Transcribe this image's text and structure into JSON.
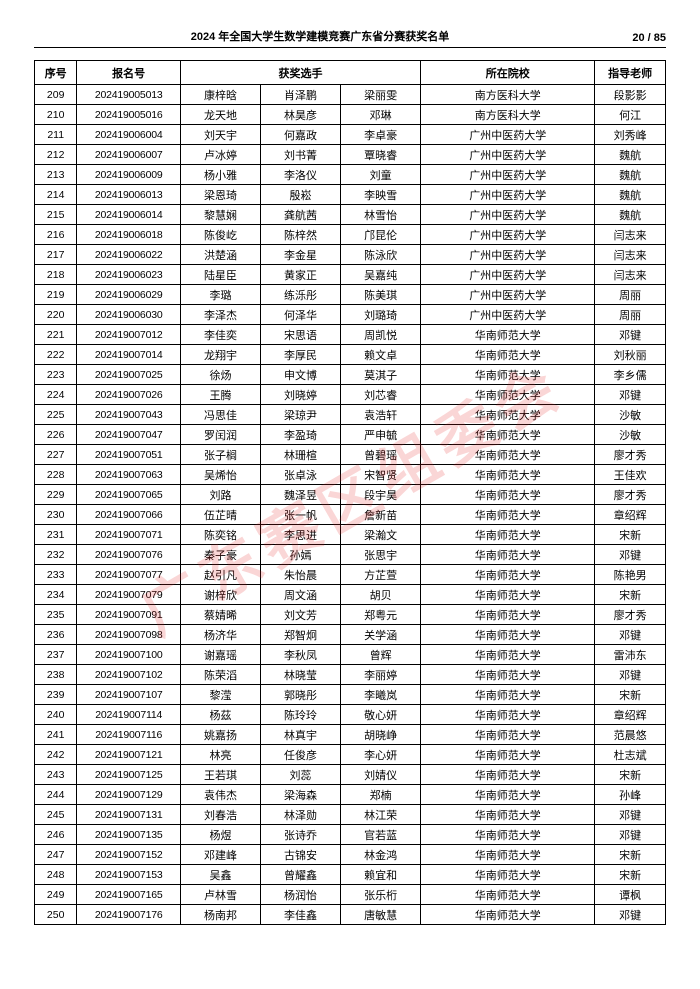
{
  "header": {
    "title": "2024 年全国大学生数学建模竞赛广东省分赛获奖名单",
    "page_label": "20 / 85"
  },
  "watermark": "广东赛区组委会",
  "columns": {
    "idx": "序号",
    "reg": "报名号",
    "winners": "获奖选手",
    "school": "所在院校",
    "teacher": "指导老师"
  },
  "rows": [
    {
      "idx": "209",
      "reg": "202419005013",
      "s1": "康梓晗",
      "s2": "肖泽鹏",
      "s3": "梁丽雯",
      "school": "南方医科大学",
      "teacher": "段影影"
    },
    {
      "idx": "210",
      "reg": "202419005016",
      "s1": "龙天地",
      "s2": "林昊彦",
      "s3": "邓琳",
      "school": "南方医科大学",
      "teacher": "何江"
    },
    {
      "idx": "211",
      "reg": "202419006004",
      "s1": "刘天宇",
      "s2": "何嘉政",
      "s3": "李卓豪",
      "school": "广州中医药大学",
      "teacher": "刘秀峰"
    },
    {
      "idx": "212",
      "reg": "202419006007",
      "s1": "卢冰婷",
      "s2": "刘书菁",
      "s3": "覃晓睿",
      "school": "广州中医药大学",
      "teacher": "魏航"
    },
    {
      "idx": "213",
      "reg": "202419006009",
      "s1": "杨小雅",
      "s2": "李洛仪",
      "s3": "刘童",
      "school": "广州中医药大学",
      "teacher": "魏航"
    },
    {
      "idx": "214",
      "reg": "202419006013",
      "s1": "梁恩琦",
      "s2": "殷崧",
      "s3": "李映雪",
      "school": "广州中医药大学",
      "teacher": "魏航"
    },
    {
      "idx": "215",
      "reg": "202419006014",
      "s1": "黎慧娴",
      "s2": "龚航茜",
      "s3": "林雪怡",
      "school": "广州中医药大学",
      "teacher": "魏航"
    },
    {
      "idx": "216",
      "reg": "202419006018",
      "s1": "陈俊屹",
      "s2": "陈梓然",
      "s3": "邝昆伦",
      "school": "广州中医药大学",
      "teacher": "闫志来"
    },
    {
      "idx": "217",
      "reg": "202419006022",
      "s1": "洪楚涵",
      "s2": "李金星",
      "s3": "陈泳欣",
      "school": "广州中医药大学",
      "teacher": "闫志来"
    },
    {
      "idx": "218",
      "reg": "202419006023",
      "s1": "陆星臣",
      "s2": "黄家正",
      "s3": "吴嘉纯",
      "school": "广州中医药大学",
      "teacher": "闫志来"
    },
    {
      "idx": "219",
      "reg": "202419006029",
      "s1": "李璐",
      "s2": "练泺彤",
      "s3": "陈美琪",
      "school": "广州中医药大学",
      "teacher": "周丽"
    },
    {
      "idx": "220",
      "reg": "202419006030",
      "s1": "李泽杰",
      "s2": "何泽华",
      "s3": "刘璐琦",
      "school": "广州中医药大学",
      "teacher": "周丽"
    },
    {
      "idx": "221",
      "reg": "202419007012",
      "s1": "李佳奕",
      "s2": "宋思语",
      "s3": "周凯悦",
      "school": "华南师范大学",
      "teacher": "邓键"
    },
    {
      "idx": "222",
      "reg": "202419007014",
      "s1": "龙翔宇",
      "s2": "李厚民",
      "s3": "赖文卓",
      "school": "华南师范大学",
      "teacher": "刘秋丽"
    },
    {
      "idx": "223",
      "reg": "202419007025",
      "s1": "徐炀",
      "s2": "申文博",
      "s3": "莫淇子",
      "school": "华南师范大学",
      "teacher": "李乡儒"
    },
    {
      "idx": "224",
      "reg": "202419007026",
      "s1": "王腾",
      "s2": "刘晓婷",
      "s3": "刘芯睿",
      "school": "华南师范大学",
      "teacher": "邓键"
    },
    {
      "idx": "225",
      "reg": "202419007043",
      "s1": "冯思佳",
      "s2": "梁琼尹",
      "s3": "袁浩轩",
      "school": "华南师范大学",
      "teacher": "沙敏"
    },
    {
      "idx": "226",
      "reg": "202419007047",
      "s1": "罗闰润",
      "s2": "李盈琦",
      "s3": "严申毓",
      "school": "华南师范大学",
      "teacher": "沙敏"
    },
    {
      "idx": "227",
      "reg": "202419007051",
      "s1": "张子榈",
      "s2": "林珊楦",
      "s3": "曾碧瑶",
      "school": "华南师范大学",
      "teacher": "廖才秀"
    },
    {
      "idx": "228",
      "reg": "202419007063",
      "s1": "吴烯怡",
      "s2": "张卓泳",
      "s3": "宋智贤",
      "school": "华南师范大学",
      "teacher": "王佳欢"
    },
    {
      "idx": "229",
      "reg": "202419007065",
      "s1": "刘路",
      "s2": "魏泽昱",
      "s3": "段宇昊",
      "school": "华南师范大学",
      "teacher": "廖才秀"
    },
    {
      "idx": "230",
      "reg": "202419007066",
      "s1": "伍芷晴",
      "s2": "张一帆",
      "s3": "詹新苗",
      "school": "华南师范大学",
      "teacher": "章绍辉"
    },
    {
      "idx": "231",
      "reg": "202419007071",
      "s1": "陈奕铭",
      "s2": "李思进",
      "s3": "梁瀚文",
      "school": "华南师范大学",
      "teacher": "宋新"
    },
    {
      "idx": "232",
      "reg": "202419007076",
      "s1": "秦子豪",
      "s2": "孙嫣",
      "s3": "张思宇",
      "school": "华南师范大学",
      "teacher": "邓键"
    },
    {
      "idx": "233",
      "reg": "202419007077",
      "s1": "赵引凡",
      "s2": "朱怡晨",
      "s3": "方芷萱",
      "school": "华南师范大学",
      "teacher": "陈艳男"
    },
    {
      "idx": "234",
      "reg": "202419007079",
      "s1": "谢梓欣",
      "s2": "周文涵",
      "s3": "胡贝",
      "school": "华南师范大学",
      "teacher": "宋新"
    },
    {
      "idx": "235",
      "reg": "202419007091",
      "s1": "蔡婧晞",
      "s2": "刘文芳",
      "s3": "郑粤元",
      "school": "华南师范大学",
      "teacher": "廖才秀"
    },
    {
      "idx": "236",
      "reg": "202419007098",
      "s1": "杨济华",
      "s2": "郑智炯",
      "s3": "关学涵",
      "school": "华南师范大学",
      "teacher": "邓键"
    },
    {
      "idx": "237",
      "reg": "202419007100",
      "s1": "谢嘉瑶",
      "s2": "李秋凤",
      "s3": "曾辉",
      "school": "华南师范大学",
      "teacher": "雷沛东"
    },
    {
      "idx": "238",
      "reg": "202419007102",
      "s1": "陈荣滔",
      "s2": "林晓莹",
      "s3": "李丽婷",
      "school": "华南师范大学",
      "teacher": "邓键"
    },
    {
      "idx": "239",
      "reg": "202419007107",
      "s1": "黎滢",
      "s2": "郭晓彤",
      "s3": "李曦岚",
      "school": "华南师范大学",
      "teacher": "宋新"
    },
    {
      "idx": "240",
      "reg": "202419007114",
      "s1": "杨茲",
      "s2": "陈玲玲",
      "s3": "敬心妍",
      "school": "华南师范大学",
      "teacher": "章绍辉"
    },
    {
      "idx": "241",
      "reg": "202419007116",
      "s1": "姚嘉扬",
      "s2": "林真宇",
      "s3": "胡晓峥",
      "school": "华南师范大学",
      "teacher": "范晨悠"
    },
    {
      "idx": "242",
      "reg": "202419007121",
      "s1": "林亮",
      "s2": "任俊彦",
      "s3": "李心妍",
      "school": "华南师范大学",
      "teacher": "杜志斌"
    },
    {
      "idx": "243",
      "reg": "202419007125",
      "s1": "王若琪",
      "s2": "刘蕊",
      "s3": "刘婧仪",
      "school": "华南师范大学",
      "teacher": "宋新"
    },
    {
      "idx": "244",
      "reg": "202419007129",
      "s1": "袁伟杰",
      "s2": "梁海森",
      "s3": "郑楠",
      "school": "华南师范大学",
      "teacher": "孙峰"
    },
    {
      "idx": "245",
      "reg": "202419007131",
      "s1": "刘春浩",
      "s2": "林泽勋",
      "s3": "林江荣",
      "school": "华南师范大学",
      "teacher": "邓键"
    },
    {
      "idx": "246",
      "reg": "202419007135",
      "s1": "杨煜",
      "s2": "张诗乔",
      "s3": "官若蓝",
      "school": "华南师范大学",
      "teacher": "邓键"
    },
    {
      "idx": "247",
      "reg": "202419007152",
      "s1": "邓建峰",
      "s2": "古锦安",
      "s3": "林金鸿",
      "school": "华南师范大学",
      "teacher": "宋新"
    },
    {
      "idx": "248",
      "reg": "202419007153",
      "s1": "吴鑫",
      "s2": "曾耀鑫",
      "s3": "赖宜和",
      "school": "华南师范大学",
      "teacher": "宋新"
    },
    {
      "idx": "249",
      "reg": "202419007165",
      "s1": "卢林雪",
      "s2": "杨润怡",
      "s3": "张乐桁",
      "school": "华南师范大学",
      "teacher": "谭枫"
    },
    {
      "idx": "250",
      "reg": "202419007176",
      "s1": "杨南邦",
      "s2": "李佳鑫",
      "s3": "唐敏慧",
      "school": "华南师范大学",
      "teacher": "邓键"
    }
  ]
}
